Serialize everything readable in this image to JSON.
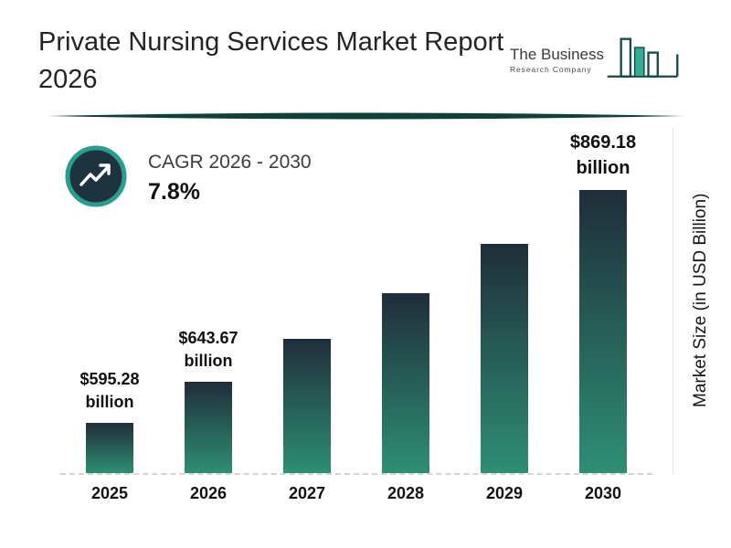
{
  "header": {
    "title_line1": "Private Nursing Services Market Report",
    "title_line2": "2026",
    "logo": {
      "name_line1": "The Business",
      "name_line2": "Research Company"
    }
  },
  "cagr": {
    "label": "CAGR 2026 - 2030",
    "value": "7.8%"
  },
  "chart_data": {
    "type": "bar",
    "title": "Private Nursing Services Market Report 2026",
    "categories": [
      "2025",
      "2026",
      "2027",
      "2028",
      "2029",
      "2030"
    ],
    "values": [
      595.28,
      643.67,
      693.88,
      748.0,
      806.34,
      869.18
    ],
    "data_labels": [
      {
        "amount": "$595.28",
        "unit": "billion"
      },
      {
        "amount": "$643.67",
        "unit": "billion"
      },
      {
        "amount": "",
        "unit": ""
      },
      {
        "amount": "",
        "unit": ""
      },
      {
        "amount": "",
        "unit": ""
      },
      {
        "amount": "$869.18",
        "unit": "billion"
      }
    ],
    "xlabel": "",
    "ylabel": "Market Size (in USD Billion)",
    "legend": "none",
    "grid": "off",
    "baseline": "dashed",
    "colors": {
      "bar_gradient_top": "#1f2d3a",
      "bar_gradient_bottom": "#2e8f74",
      "accent_teal": "#2a9d8f",
      "divider_dark_teal": "#10403a",
      "badge_fill": "#1d3340"
    }
  }
}
